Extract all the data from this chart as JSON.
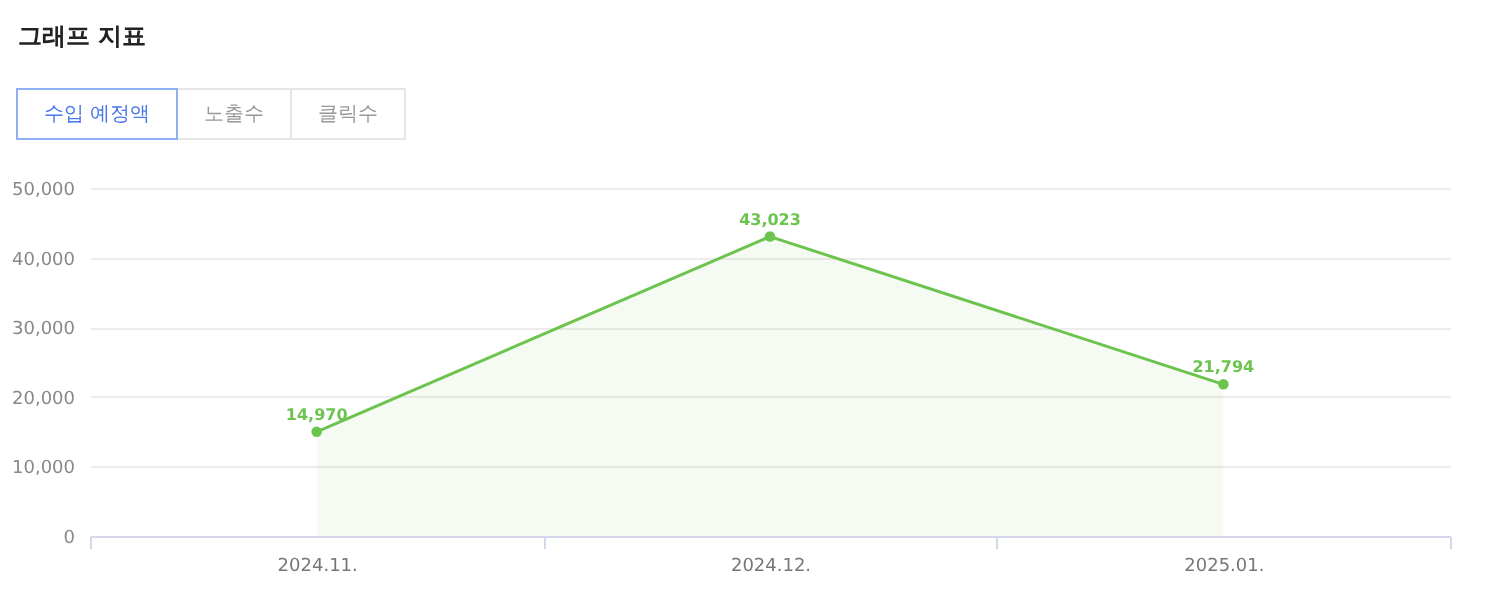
{
  "chart_data": {
    "type": "area",
    "title": "그래프 지표",
    "annotations": [
      "수입 예정액",
      "노출수",
      "클릭수"
    ],
    "categories": [
      "2024.11.",
      "2024.12.",
      "2025.01."
    ],
    "series": [
      {
        "color": "#6cc44f",
        "values": [
          14970,
          43023,
          21794
        ],
        "value_labels": [
          "14,970",
          "43,023",
          "21,794"
        ]
      }
    ],
    "ylim": [
      0,
      50000
    ],
    "yticks": [
      0,
      {
        "value": 10000,
        "label": "10,000"
      },
      {
        "value": 20000,
        "label": "20,000"
      },
      {
        "value": 30000,
        "label": "30,000"
      },
      {
        "value": 40000,
        "label": "40,000"
      },
      {
        "value": 50000,
        "label": "50,000"
      }
    ],
    "grid": "y",
    "marker": "circle",
    "data_labels": true,
    "legend": false
  }
}
